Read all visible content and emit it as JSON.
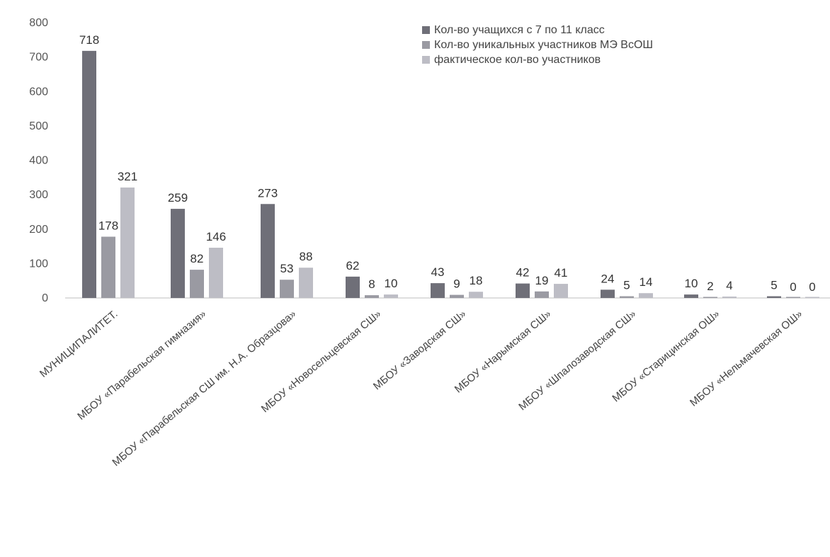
{
  "chart_data": {
    "type": "bar",
    "categories": [
      "МУНИЦИПАЛИТЕТ.",
      "МБОУ «Парабельская гимназия»",
      "МБОУ «Парабельская СШ им. Н.А. Образцова»",
      "МБОУ «Новосельцевская СШ»",
      "МБОУ «Заводская СШ»",
      "МБОУ «Нарымская СШ»",
      "МБОУ «Шпалозаводская СШ»",
      "МБОУ «Старицинская ОШ»",
      "МБОУ «Нельмачевская ОШ»"
    ],
    "series": [
      {
        "name": "Кол-во учащихся с 7 по 11 класс",
        "color": "#6f6f78",
        "values": [
          718,
          259,
          273,
          62,
          43,
          42,
          24,
          10,
          5
        ]
      },
      {
        "name": "Кол-во уникальных участников МЭ ВсОШ",
        "color": "#9a9aa2",
        "values": [
          178,
          82,
          53,
          8,
          9,
          19,
          5,
          2,
          0
        ]
      },
      {
        "name": "фактическое кол-во участников",
        "color": "#bdbdc5",
        "values": [
          321,
          146,
          88,
          10,
          18,
          41,
          14,
          4,
          0
        ]
      }
    ],
    "y_ticks": [
      "0",
      "100",
      "200",
      "300",
      "400",
      "500",
      "600",
      "700",
      "800"
    ],
    "ylim": [
      0,
      800
    ],
    "legend": "top-right",
    "grid": false
  }
}
